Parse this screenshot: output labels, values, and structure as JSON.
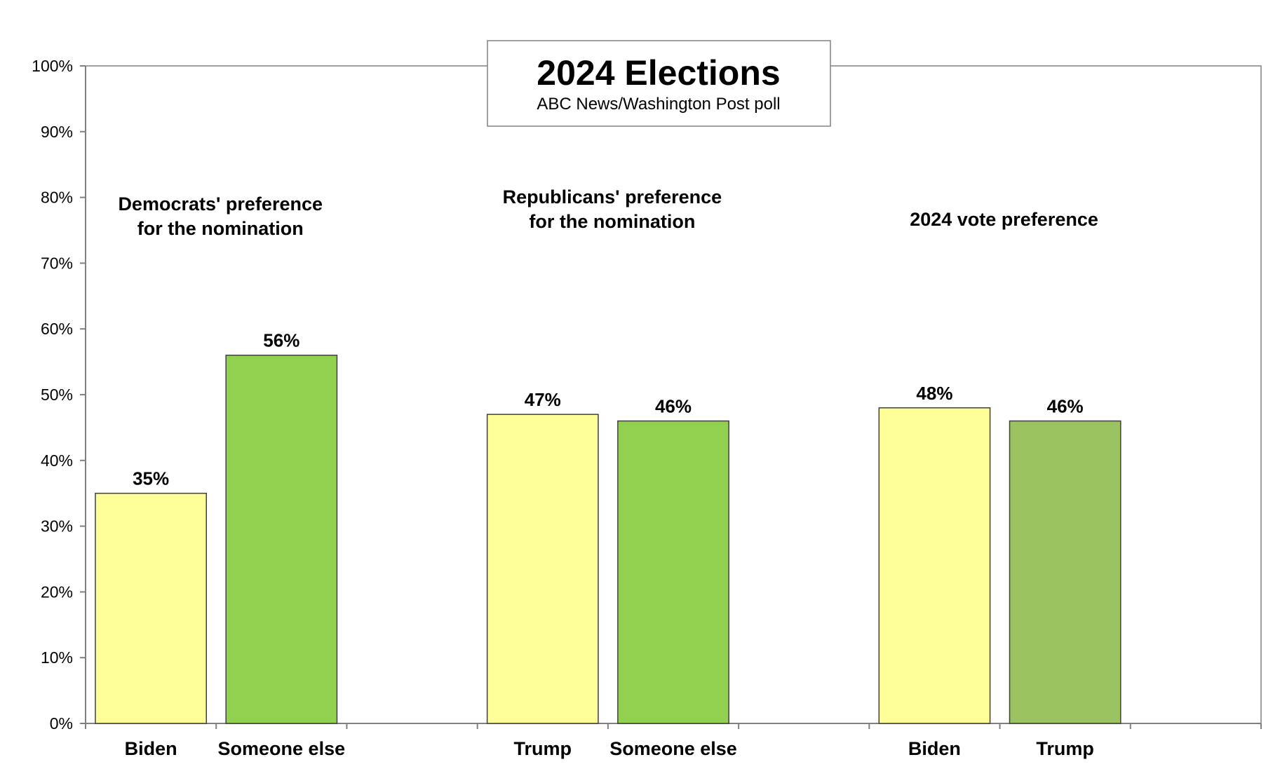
{
  "chart_data": {
    "type": "bar",
    "title": "2024 Elections",
    "subtitle": "ABC News/Washington Post poll",
    "ylim": [
      0,
      100
    ],
    "y_ticks": [
      "0%",
      "10%",
      "20%",
      "30%",
      "40%",
      "50%",
      "60%",
      "70%",
      "80%",
      "90%",
      "100%"
    ],
    "grid": false,
    "groups": [
      {
        "title_lines": [
          "Democrats' preference",
          "for the nomination"
        ],
        "bars": [
          {
            "category": "Biden",
            "value": 35,
            "label": "35%",
            "color": "#FFFF99"
          },
          {
            "category": "Someone else",
            "value": 56,
            "label": "56%",
            "color": "#92D050"
          }
        ]
      },
      {
        "title_lines": [
          "Republicans' preference",
          "for the nomination"
        ],
        "bars": [
          {
            "category": "Trump",
            "value": 47,
            "label": "47%",
            "color": "#FFFF99"
          },
          {
            "category": "Someone else",
            "value": 46,
            "label": "46%",
            "color": "#92D050"
          }
        ]
      },
      {
        "title_lines": [
          "2024 vote preference"
        ],
        "bars": [
          {
            "category": "Biden",
            "value": 48,
            "label": "48%",
            "color": "#FFFF99"
          },
          {
            "category": "Trump",
            "value": 46,
            "label": "46%",
            "color": "#9BC362"
          }
        ]
      }
    ]
  }
}
